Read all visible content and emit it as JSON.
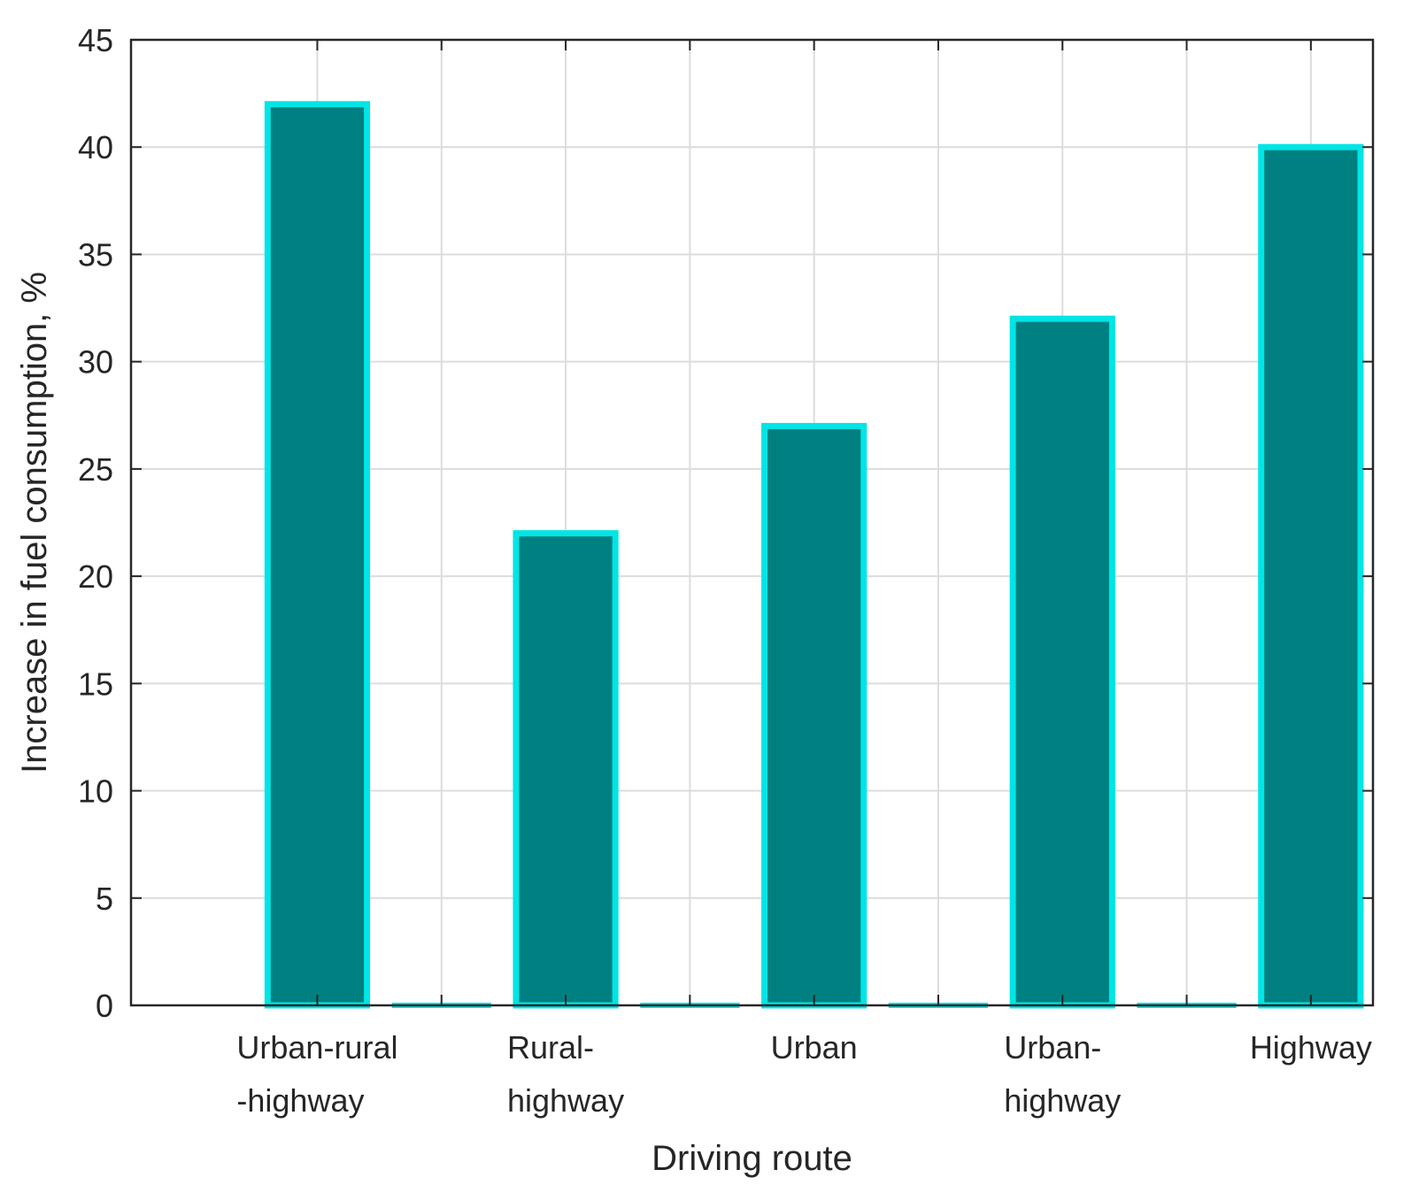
{
  "chart_data": {
    "type": "bar",
    "xlabel": "Driving route",
    "ylabel": "Increase in fuel consumption, %",
    "ylim": [
      0,
      45
    ],
    "yticks": [
      0,
      5,
      10,
      15,
      20,
      25,
      30,
      35,
      40,
      45
    ],
    "xlim": [
      0,
      10
    ],
    "grid": true,
    "bar_fill_color": "#008080",
    "bar_edge_color": "#00e5e5",
    "categories": [
      {
        "label_lines": [
          "Urban-rural",
          "-highway"
        ],
        "x": 1.5
      },
      {
        "label_lines": [
          "Rural-",
          "highway"
        ],
        "x": 3.5
      },
      {
        "label_lines": [
          "Urban"
        ],
        "x": 5.5
      },
      {
        "label_lines": [
          "Urban-",
          "highway"
        ],
        "x": 7.5
      },
      {
        "label_lines": [
          "Highway"
        ],
        "x": 9.5
      }
    ],
    "bars": [
      {
        "x": 1.5,
        "value": 42
      },
      {
        "x": 2.5,
        "value": 0
      },
      {
        "x": 3.5,
        "value": 22
      },
      {
        "x": 4.5,
        "value": 0
      },
      {
        "x": 5.5,
        "value": 27
      },
      {
        "x": 6.5,
        "value": 0
      },
      {
        "x": 7.5,
        "value": 32
      },
      {
        "x": 8.5,
        "value": 0
      },
      {
        "x": 9.5,
        "value": 40
      }
    ]
  }
}
